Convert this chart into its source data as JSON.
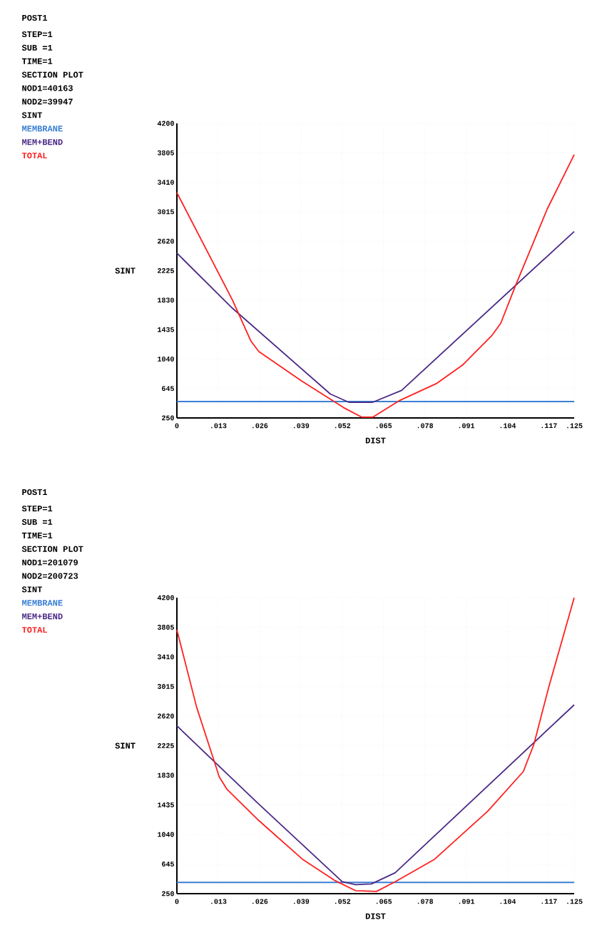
{
  "chart_data": [
    {
      "type": "line",
      "xlabel": "DIST",
      "ylabel": "SINT",
      "legend": "left",
      "grid": true,
      "annotations": [
        "POST1",
        "STEP=1",
        "SUB =1",
        "TIME=1",
        "SECTION PLOT",
        "NOD1=40163",
        "NOD2=39947",
        "SINT"
      ],
      "xlim": [
        0,
        0.125
      ],
      "ylim": [
        250,
        4200
      ],
      "xticks": [
        0,
        {
          "value": 0.013,
          "label": ".013"
        },
        {
          "value": 0.026,
          "label": ".026"
        },
        {
          "value": 0.039,
          "label": ".039"
        },
        {
          "value": 0.052,
          "label": ".052"
        },
        {
          "value": 0.065,
          "label": ".065"
        },
        {
          "value": 0.078,
          "label": ".078"
        },
        {
          "value": 0.091,
          "label": ".091"
        },
        {
          "value": 0.104,
          "label": ".104"
        },
        {
          "value": 0.117,
          "label": ".117"
        },
        {
          "value": 0.125,
          "label": ".125"
        }
      ],
      "yticks": [
        250,
        645,
        1040,
        1435,
        1830,
        2225,
        2620,
        3015,
        3410,
        3805,
        4200
      ],
      "series": [
        {
          "name": "MEMBRANE",
          "color": "#3a7fd5",
          "x": [
            0,
            0.125
          ],
          "values": [
            470,
            470
          ]
        },
        {
          "name": "MEM+BEND",
          "color": "#4b2a86",
          "x": [
            0,
            0.0175,
            0.0483,
            0.0541,
            0.0616,
            0.0707,
            0.125
          ],
          "values": [
            2460,
            1720,
            570,
            460,
            460,
            620,
            2750
          ]
        },
        {
          "name": "TOTAL",
          "color": "#ff2020",
          "x": [
            0,
            0.0175,
            0.0233,
            0.0258,
            0.0391,
            0.0524,
            0.0582,
            0.0616,
            0.0699,
            0.0816,
            0.0899,
            0.099,
            0.1019,
            0.1065,
            0.1165,
            0.125
          ],
          "values": [
            3270,
            1830,
            1280,
            1140,
            750,
            390,
            260,
            260,
            480,
            710,
            960,
            1350,
            1520,
            2020,
            3050,
            3780
          ]
        }
      ]
    },
    {
      "type": "line",
      "xlabel": "DIST",
      "ylabel": "SINT",
      "legend": "left",
      "grid": true,
      "annotations": [
        "POST1",
        "STEP=1",
        "SUB =1",
        "TIME=1",
        "SECTION PLOT",
        "NOD1=201079",
        "NOD2=200723",
        "SINT"
      ],
      "xlim": [
        0,
        0.125
      ],
      "ylim": [
        250,
        4200
      ],
      "xticks": [
        0,
        {
          "value": 0.013,
          "label": ".013"
        },
        {
          "value": 0.026,
          "label": ".026"
        },
        {
          "value": 0.039,
          "label": ".039"
        },
        {
          "value": 0.052,
          "label": ".052"
        },
        {
          "value": 0.065,
          "label": ".065"
        },
        {
          "value": 0.078,
          "label": ".078"
        },
        {
          "value": 0.091,
          "label": ".091"
        },
        {
          "value": 0.104,
          "label": ".104"
        },
        {
          "value": 0.117,
          "label": ".117"
        },
        {
          "value": 0.125,
          "label": ".125"
        }
      ],
      "yticks": [
        250,
        645,
        1040,
        1435,
        1830,
        2225,
        2620,
        3015,
        3410,
        3805,
        4200
      ],
      "series": [
        {
          "name": "MEMBRANE",
          "color": "#3a7fd5",
          "x": [
            0,
            0.125
          ],
          "values": [
            400,
            400
          ]
        },
        {
          "name": "MEM+BEND",
          "color": "#4b2a86",
          "x": [
            0,
            0.0254,
            0.052,
            0.0562,
            0.0612,
            0.0687,
            0.125
          ],
          "values": [
            2490,
            1460,
            410,
            370,
            380,
            530,
            2770
          ]
        },
        {
          "name": "TOTAL",
          "color": "#ff2020",
          "x": [
            0,
            0.0062,
            0.0121,
            0.0133,
            0.0158,
            0.0254,
            0.0395,
            0.0495,
            0.0562,
            0.0628,
            0.0687,
            0.0811,
            0.0978,
            0.109,
            0.1123,
            0.1169,
            0.125
          ],
          "values": [
            3770,
            2740,
            1970,
            1810,
            1640,
            1240,
            710,
            430,
            290,
            280,
            410,
            710,
            1350,
            1880,
            2240,
            2990,
            4200
          ]
        }
      ]
    }
  ]
}
